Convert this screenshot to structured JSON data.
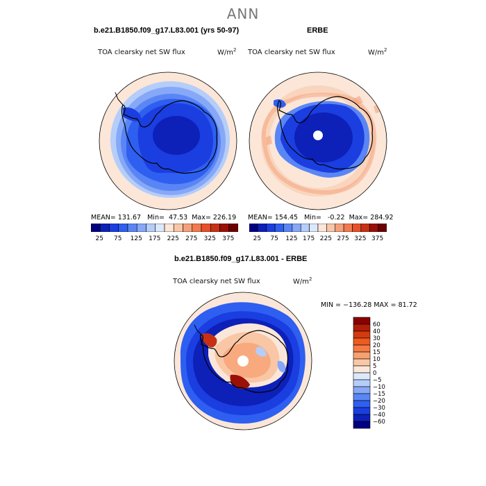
{
  "season": "ANN",
  "colors": {
    "levels": [
      "#000080",
      "#0d20b8",
      "#1a3ee0",
      "#2e5ff0",
      "#5a86f5",
      "#86a8f7",
      "#b5cdf9",
      "#dde9fb",
      "#fbe6d8",
      "#f8c6a8",
      "#f5a07a",
      "#f27a4e",
      "#e8502a",
      "#c83014",
      "#9a1006",
      "#6b0000"
    ]
  },
  "chart_data": [
    {
      "type": "heatmap",
      "projection": "south-polar-stereographic",
      "case_title": "b.e21.B1850.f09_g17.L83.001 (yrs 50-97)",
      "variable": "TOA clearsky net SW flux",
      "units": "W/m",
      "units_sup": "2",
      "mean_label": "MEAN=",
      "mean": "131.67",
      "min_label": "Min=",
      "min": "47.53",
      "max_label": "Max=",
      "max": "226.19",
      "colorbar_ticks": [
        "25",
        "75",
        "125",
        "175",
        "225",
        "275",
        "325",
        "375"
      ]
    },
    {
      "type": "heatmap",
      "projection": "south-polar-stereographic",
      "case_title": "ERBE",
      "variable": "TOA clearsky net SW flux",
      "units": "W/m",
      "units_sup": "2",
      "mean_label": "MEAN=",
      "mean": "154.45",
      "min_label": "Min=",
      "min": "-0.22",
      "max_label": "Max=",
      "max": "284.92",
      "colorbar_ticks": [
        "25",
        "75",
        "125",
        "175",
        "225",
        "275",
        "325",
        "375"
      ]
    },
    {
      "type": "heatmap",
      "projection": "south-polar-stereographic",
      "case_title": "b.e21.B1850.f09_g17.L83.001 - ERBE",
      "variable": "TOA clearsky net SW flux",
      "units": "W/m",
      "units_sup": "2",
      "min_label": "MIN =",
      "min": "−136.28",
      "max_label": "MAX =",
      "max": " 81.72",
      "colorbar_levels": [
        "60",
        "40",
        "30",
        "20",
        "15",
        "10",
        "5",
        "0",
        "−5",
        "−10",
        "−15",
        "−20",
        "−30",
        "−40",
        "−60"
      ],
      "colorbar_colors": [
        "#8b0000",
        "#b01e08",
        "#d33a10",
        "#ef5a1e",
        "#f57a44",
        "#f7a070",
        "#f9c7a6",
        "#fbe7d9",
        "#dde9fb",
        "#b5cdf9",
        "#86a8f7",
        "#5a86f5",
        "#2e5ff0",
        "#1a3ee0",
        "#0d20b8",
        "#000080"
      ]
    }
  ]
}
